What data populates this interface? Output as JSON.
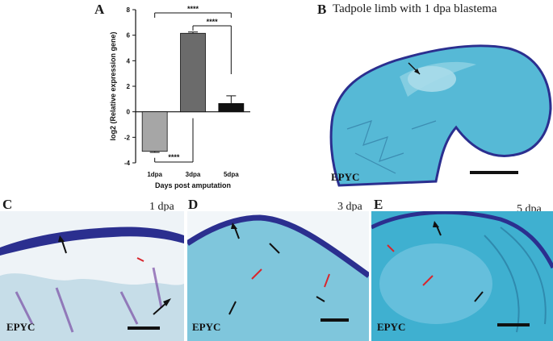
{
  "figure": {
    "panel_a": {
      "letter": "A",
      "chart_data": {
        "type": "bar",
        "categories": [
          "1dpa",
          "3dpa",
          "5dpa"
        ],
        "values": [
          -3.1,
          6.15,
          0.65
        ],
        "errors": [
          0.08,
          0.1,
          0.6
        ],
        "bar_colors": [
          "#a6a6a6",
          "#6b6b6b",
          "#111111"
        ],
        "xlabel": "Days post amputation",
        "ylabel": "log2 (Relative expression gene)",
        "ylim": [
          -4,
          8
        ],
        "yticks": [
          -4,
          -2,
          0,
          2,
          4,
          6,
          8
        ],
        "significance": [
          {
            "from": "1dpa",
            "to": "5dpa",
            "label": "****",
            "position": "top"
          },
          {
            "from": "3dpa",
            "to": "5dpa",
            "label": "****",
            "position": "top"
          },
          {
            "from": "1dpa",
            "to": "3dpa",
            "label": "****",
            "position": "bottom"
          }
        ]
      }
    },
    "panel_b": {
      "letter": "B",
      "title": "Tadpole limb with 1 dpa blastema",
      "stain_label": "EPYC"
    },
    "panel_c": {
      "letter": "C",
      "time_label": "1 dpa",
      "stain_label": "EPYC"
    },
    "panel_d": {
      "letter": "D",
      "time_label": "3 dpa",
      "stain_label": "EPYC"
    },
    "panel_e": {
      "letter": "E",
      "time_label": "5 dpa",
      "stain_label": "EPYC"
    },
    "colors": {
      "tissue_blue": "#2aa6c8",
      "epidermis": "#2b2f8f",
      "arrow_black": "#111111",
      "arrow_red": "#d8262d"
    }
  }
}
